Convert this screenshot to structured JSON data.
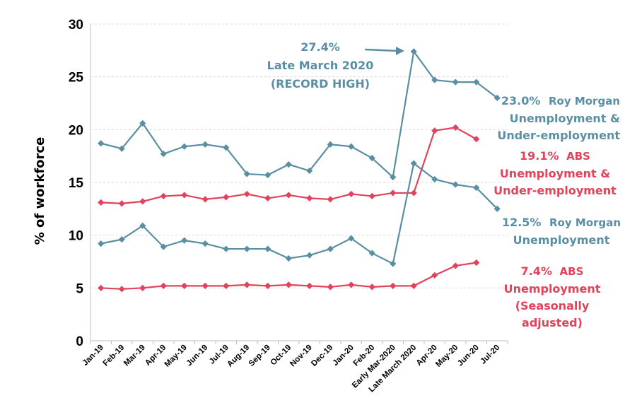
{
  "chart_data": {
    "type": "line",
    "ylabel": "% of workforce",
    "xlabel": "",
    "ylim": [
      0,
      30
    ],
    "yticks": [
      "0",
      "5",
      "10",
      "15",
      "20",
      "25",
      "30"
    ],
    "grid": true,
    "categories": [
      "Jan-19",
      "Feb-19",
      "Mar-19",
      "Apr-19",
      "May-19",
      "Jun-19",
      "Jul-19",
      "Aug-19",
      "Sep-19",
      "Oct-19",
      "Nov-19",
      "Dec-19",
      "Jan-20",
      "Feb-20",
      "Early Mar-2020",
      "Late March 2020",
      "Apr-20",
      "May-20",
      "Jun-20",
      "Jul-20"
    ],
    "series": [
      {
        "key": "rm_under",
        "color": "#5a8fa3",
        "values": [
          18.7,
          18.2,
          20.6,
          17.7,
          18.4,
          18.6,
          18.3,
          15.8,
          15.7,
          16.7,
          16.1,
          18.6,
          18.4,
          17.3,
          15.5,
          27.4,
          24.7,
          24.5,
          24.5,
          23.0
        ]
      },
      {
        "key": "abs_under",
        "color": "#e0435a",
        "values": [
          13.1,
          13.0,
          13.2,
          13.7,
          13.8,
          13.4,
          13.6,
          13.9,
          13.5,
          13.8,
          13.5,
          13.4,
          13.9,
          13.7,
          14.0,
          14.0,
          19.9,
          20.2,
          19.1,
          null
        ]
      },
      {
        "key": "rm_unemp",
        "color": "#5a8fa3",
        "values": [
          9.2,
          9.6,
          10.9,
          8.9,
          9.5,
          9.2,
          8.7,
          8.7,
          8.7,
          7.8,
          8.1,
          8.7,
          9.7,
          8.3,
          7.3,
          16.8,
          15.3,
          14.8,
          14.5,
          12.5
        ]
      },
      {
        "key": "abs_unemp",
        "color": "#e0435a",
        "values": [
          5.0,
          4.9,
          5.0,
          5.2,
          5.2,
          5.2,
          5.2,
          5.3,
          5.2,
          5.3,
          5.2,
          5.1,
          5.3,
          5.1,
          5.2,
          5.2,
          6.2,
          7.1,
          7.4,
          null
        ]
      }
    ],
    "annotations": {
      "record": {
        "value": "27.4%",
        "line2": "Late March 2020",
        "line3": "(RECORD HIGH)",
        "color": "#5a8fa3"
      },
      "rm_under": {
        "value": "23.0%",
        "label1": "Roy Morgan",
        "line2": "Unemployment &",
        "line3": "Under-employment",
        "color": "#5a8fa3"
      },
      "abs_under": {
        "value": "19.1%",
        "label1": "ABS",
        "line2": "Unemployment &",
        "line3": "Under-employment",
        "color": "#e0435a"
      },
      "rm_unemp": {
        "value": "12.5%",
        "label1": "Roy Morgan",
        "line2": "Unemployment",
        "color": "#5a8fa3"
      },
      "abs_unemp": {
        "value": "7.4%",
        "label1": "ABS",
        "line2": "Unemployment",
        "line3": "(Seasonally",
        "line4": "adjusted)",
        "color": "#e0435a"
      }
    }
  }
}
